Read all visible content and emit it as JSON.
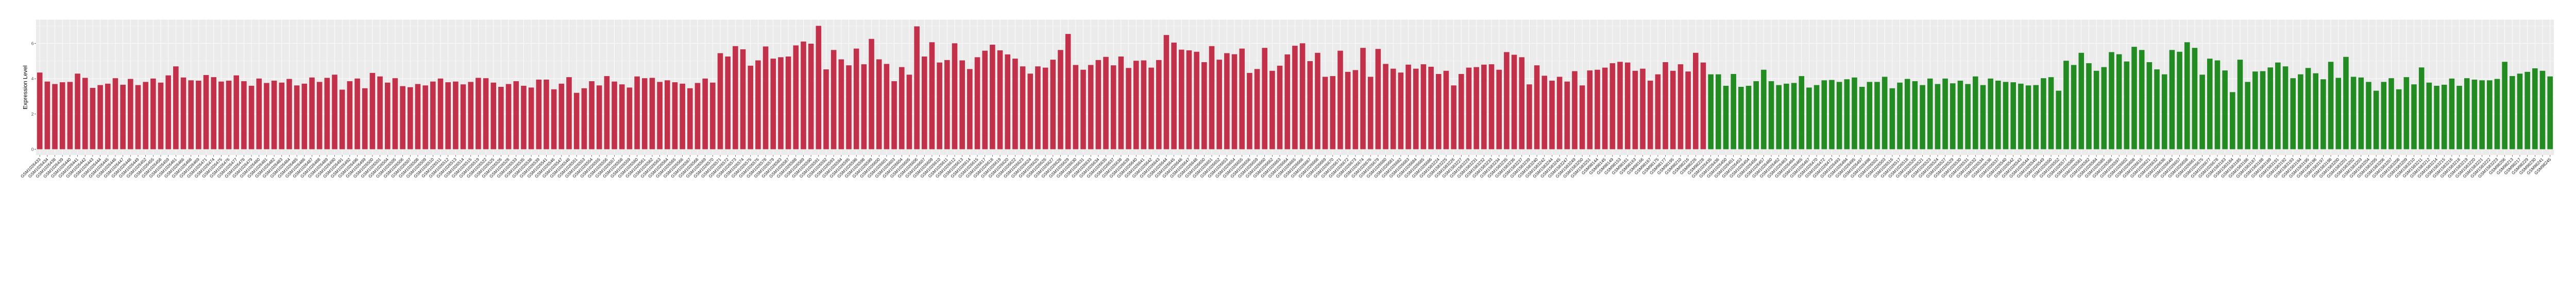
{
  "chart_data": {
    "type": "bar",
    "title": "",
    "xlabel": "",
    "ylabel": "Expression Level",
    "ylim": [
      -0.33,
      7.35
    ],
    "yticks": [
      0,
      2,
      4,
      6
    ],
    "grid": true,
    "legend": "none",
    "colors": {
      "group1": "#C3304A",
      "group2": "#228B22",
      "panel": "#EBEBEB",
      "grid": "#FFFFFF"
    },
    "series": [
      {
        "color": "#C3304A",
        "categories": [
          "GSM1026433",
          "GSM1026434",
          "GSM1026438",
          "GSM1026439",
          "GSM1026440",
          "GSM1026441",
          "GSM1026442",
          "GSM1026443",
          "GSM1026444",
          "GSM1026445",
          "GSM1026446",
          "GSM1026447",
          "GSM1026448",
          "GSM1026449",
          "GSM1026452",
          "GSM1026455",
          "GSM1026458",
          "GSM1026459",
          "GSM1026461",
          "GSM1026466",
          "GSM1026468",
          "GSM1026469",
          "GSM1026471",
          "GSM1026474",
          "GSM1026475",
          "GSM1026476",
          "GSM1026477",
          "GSM1026478",
          "GSM1026479",
          "GSM1026480",
          "GSM1026481",
          "GSM1026482",
          "GSM1026483",
          "GSM1026484",
          "GSM1026485",
          "GSM1026486",
          "GSM1026487",
          "GSM1026488",
          "GSM1026489",
          "GSM1026490",
          "GSM1026491",
          "GSM1026492",
          "GSM1026496",
          "GSM1026499",
          "GSM1026500",
          "GSM1026501",
          "GSM1026504",
          "GSM1026505",
          "GSM1026506",
          "GSM1026507",
          "GSM1026508",
          "GSM1026509",
          "GSM1026510",
          "GSM1026511",
          "GSM1026512",
          "GSM1026513",
          "GSM1026514",
          "GSM1026515",
          "GSM1026519",
          "GSM1026522",
          "GSM1026525",
          "GSM1026526",
          "GSM1026528",
          "GSM1026533",
          "GSM1026535",
          "GSM1026538",
          "GSM1026539",
          "GSM1026541",
          "GSM1026546",
          "GSM1026547",
          "GSM1026548",
          "GSM1026551",
          "GSM1026553",
          "GSM1026554",
          "GSM1026555",
          "GSM1026556",
          "GSM1026557",
          "GSM1026558",
          "GSM1026559",
          "GSM1026560",
          "GSM1026561",
          "GSM1026562",
          "GSM1026563",
          "GSM1026564",
          "GSM1026565",
          "GSM1026566",
          "GSM1026567",
          "GSM1026568",
          "GSM1026569",
          "GSM1026570",
          "GSM1026571",
          "GSM1026572",
          "GSM1026573",
          "GSM1026574",
          "GSM1026575",
          "GSM1026576",
          "GSM1026578",
          "GSM1026579",
          "GSM1026583",
          "GSM1026587",
          "GSM1026588",
          "GSM1026589",
          "GSM1026590",
          "GSM1026591",
          "GSM1026592",
          "GSM1026593",
          "GSM1026594",
          "GSM1026595",
          "GSM1026596",
          "GSM1026598",
          "GSM1026599",
          "GSM1026600",
          "GSM1026601",
          "GSM1026603",
          "GSM1026604",
          "GSM1026605",
          "GSM1026606",
          "GSM1026607",
          "GSM1026609",
          "GSM1026610",
          "GSM1026611",
          "GSM1026612",
          "GSM1026613",
          "GSM1026614",
          "GSM1026615",
          "GSM1026617",
          "GSM1026618",
          "GSM1026619",
          "GSM1026620",
          "GSM1026622",
          "GSM1026623",
          "GSM1026624",
          "GSM1026625",
          "GSM1026626",
          "GSM1026627",
          "GSM1026628",
          "GSM1026629",
          "GSM1026630",
          "GSM1026631",
          "GSM1026633",
          "GSM1026634",
          "GSM1026635",
          "GSM1026637",
          "GSM1026638",
          "GSM1026639",
          "GSM1026640",
          "GSM1026641",
          "GSM1026642",
          "GSM1026643",
          "GSM1026644",
          "GSM1026645",
          "GSM1026646",
          "GSM1026647",
          "GSM1026648",
          "GSM1026650",
          "GSM1026651",
          "GSM1026652",
          "GSM1026653",
          "GSM1026654",
          "GSM1026655",
          "GSM1026656",
          "GSM1026659",
          "GSM1026660",
          "GSM1026662",
          "GSM1026663",
          "GSM1026664",
          "GSM1026665",
          "GSM1026666",
          "GSM1026667",
          "GSM1026668",
          "GSM1026669",
          "GSM1026670",
          "GSM1026671",
          "GSM1026672",
          "GSM1026673",
          "GSM1026674",
          "GSM1026676",
          "GSM1026679",
          "GSM1026680",
          "GSM1026681",
          "GSM1026682",
          "GSM1026683",
          "GSM1026684",
          "GSM1026685",
          "GSM1026686",
          "GSM1583224",
          "GSM1583225",
          "GSM1583226",
          "GSM1583227",
          "GSM1583229",
          "GSM1583231",
          "GSM1583232",
          "GSM1583233",
          "GSM1583234",
          "GSM1583235",
          "GSM1583236",
          "GSM1583237",
          "GSM1583239",
          "GSM1583240",
          "GSM1583242",
          "GSM1583244",
          "GSM1583245",
          "GSM1583247",
          "GSM1583249",
          "GSM1583250",
          "GSM1583251",
          "GSM98144",
          "GSM98145",
          "GSM98149",
          "GSM98153",
          "GSM98161",
          "GSM98163",
          "GSM98166",
          "GSM98167",
          "GSM98175",
          "GSM98177",
          "GSM98195",
          "GSM98210",
          "GSM98216",
          "GSM98226",
          "GSM98228"
        ],
        "values": [
          4.35,
          3.84,
          3.7,
          3.8,
          3.82,
          4.29,
          4.05,
          3.48,
          3.64,
          3.72,
          4.03,
          3.66,
          3.99,
          3.64,
          3.82,
          4.01,
          3.78,
          4.19,
          4.7,
          4.07,
          3.91,
          3.89,
          4.21,
          4.09,
          3.84,
          3.89,
          4.19,
          3.86,
          3.6,
          4.01,
          3.76,
          3.89,
          3.78,
          3.99,
          3.62,
          3.72,
          4.07,
          3.82,
          4.05,
          4.23,
          3.38,
          3.86,
          4.01,
          3.46,
          4.33,
          4.13,
          3.78,
          4.03,
          3.58,
          3.52,
          3.7,
          3.62,
          3.84,
          4.01,
          3.8,
          3.84,
          3.68,
          3.82,
          4.05,
          4.03,
          3.78,
          3.54,
          3.7,
          3.86,
          3.6,
          3.5,
          3.95,
          3.95,
          3.4,
          3.72,
          4.09,
          3.2,
          3.46,
          3.86,
          3.62,
          4.15,
          3.84,
          3.68,
          3.5,
          4.13,
          4.03,
          4.05,
          3.82,
          3.91,
          3.8,
          3.72,
          3.46,
          3.76,
          4.01,
          3.78,
          5.45,
          5.26,
          5.85,
          5.67,
          4.74,
          5.04,
          5.83,
          5.14,
          5.22,
          5.26,
          5.89,
          6.11,
          5.99,
          7.0,
          4.53,
          5.63,
          5.1,
          4.76,
          5.71,
          4.82,
          6.26,
          5.1,
          4.84,
          3.86,
          4.66,
          4.23,
          6.97,
          5.26,
          6.07,
          4.92,
          5.06,
          6.01,
          5.04,
          4.55,
          5.22,
          5.59,
          5.93,
          5.61,
          5.38,
          5.14,
          4.7,
          4.29,
          4.7,
          4.63,
          5.08,
          5.63,
          6.54,
          4.78,
          4.51,
          4.78,
          5.06,
          5.24,
          4.76,
          5.26,
          4.61,
          5.02,
          5.04,
          4.63,
          5.06,
          6.48,
          6.05,
          5.65,
          5.61,
          5.53,
          4.94,
          5.85,
          5.08,
          5.45,
          5.39,
          5.71,
          4.33,
          4.55,
          5.75,
          4.45,
          4.74,
          5.38,
          5.87,
          6.01,
          5.0,
          5.47,
          4.11,
          4.15,
          5.59,
          4.39,
          4.49,
          5.75,
          4.11,
          5.69,
          4.84,
          4.57,
          4.35,
          4.8,
          4.57,
          4.82,
          4.68,
          4.27,
          4.45,
          3.62,
          4.27,
          4.63,
          4.66,
          4.8,
          4.82,
          4.51,
          5.51,
          5.36,
          5.22,
          3.68,
          4.76,
          4.17,
          3.89,
          4.11,
          3.84,
          4.43,
          3.62,
          4.47,
          4.51,
          4.63,
          4.88,
          4.96,
          4.92,
          4.45,
          4.57,
          3.89,
          4.25,
          4.94,
          4.45,
          4.82,
          4.41,
          5.47,
          4.92
        ]
      },
      {
        "color": "#228B22",
        "categories": [
          "GSM1026435",
          "GSM1026436",
          "GSM1026450",
          "GSM1026451",
          "GSM1026453",
          "GSM1026454",
          "GSM1026456",
          "GSM1026457",
          "GSM1026460",
          "GSM1026462",
          "GSM1026463",
          "GSM1026464",
          "GSM1026465",
          "GSM1026467",
          "GSM1026470",
          "GSM1026472",
          "GSM1026473",
          "GSM1026493",
          "GSM1026494",
          "GSM1026495",
          "GSM1026497",
          "GSM1026498",
          "GSM1026502",
          "GSM1026503",
          "GSM1026516",
          "GSM1026517",
          "GSM1026518",
          "GSM1026520",
          "GSM1026521",
          "GSM1026523",
          "GSM1026524",
          "GSM1026527",
          "GSM1026529",
          "GSM1026530",
          "GSM1026531",
          "GSM1026532",
          "GSM1026534",
          "GSM1026536",
          "GSM1026537",
          "GSM1026540",
          "GSM1026542",
          "GSM1026543",
          "GSM1026544",
          "GSM1026545",
          "GSM1026549",
          "GSM1026550",
          "GSM1026552",
          "GSM1026577",
          "GSM1026580",
          "GSM1026581",
          "GSM1026582",
          "GSM1026584",
          "GSM1026585",
          "GSM1026586",
          "GSM1026597",
          "GSM1026602",
          "GSM1026608",
          "GSM1026616",
          "GSM1026621",
          "GSM1026632",
          "GSM1026636",
          "GSM1026649",
          "GSM1026657",
          "GSM1026658",
          "GSM1026661",
          "GSM1026675",
          "GSM1026677",
          "GSM1026678",
          "GSM1583183",
          "GSM1583184",
          "GSM1583185",
          "GSM1583186",
          "GSM1583187",
          "GSM1583188",
          "GSM1583189",
          "GSM1583191",
          "GSM1583192",
          "GSM1583193",
          "GSM1583194",
          "GSM1583195",
          "GSM1583196",
          "GSM1583197",
          "GSM1583198",
          "GSM1583200",
          "GSM1583201",
          "GSM1583202",
          "GSM1583203",
          "GSM1583204",
          "GSM1583205",
          "GSM1583206",
          "GSM1583207",
          "GSM1583208",
          "GSM1583209",
          "GSM1583210",
          "GSM1583211",
          "GSM1583212",
          "GSM1583214",
          "GSM1583215",
          "GSM1583216",
          "GSM1583218",
          "GSM1583219",
          "GSM1583220",
          "GSM1583221",
          "GSM1583222",
          "GSM1583223",
          "GSM98206",
          "GSM98213",
          "GSM98217",
          "GSM98229",
          "GSM98230",
          "GSM98241",
          "GSM98245"
        ],
        "values": [
          4.25,
          4.25,
          3.6,
          4.27,
          3.54,
          3.6,
          3.86,
          4.51,
          3.86,
          3.64,
          3.72,
          3.76,
          4.15,
          3.5,
          3.64,
          3.91,
          3.93,
          3.82,
          3.97,
          4.07,
          3.54,
          3.82,
          3.82,
          4.11,
          3.46,
          3.78,
          3.99,
          3.86,
          3.64,
          4.01,
          3.7,
          4.01,
          3.74,
          3.89,
          3.7,
          4.13,
          3.64,
          4.01,
          3.89,
          3.82,
          3.8,
          3.72,
          3.62,
          3.64,
          4.03,
          4.09,
          3.32,
          5.02,
          4.78,
          5.47,
          4.88,
          4.45,
          4.66,
          5.51,
          5.39,
          4.98,
          5.81,
          5.63,
          4.94,
          4.53,
          4.25,
          5.63,
          5.53,
          6.07,
          5.75,
          4.23,
          5.14,
          5.04,
          4.47,
          3.24,
          5.08,
          3.82,
          4.41,
          4.43,
          4.64,
          4.92,
          4.7,
          4.03,
          4.25,
          4.61,
          4.31,
          3.97,
          4.96,
          4.05,
          5.24,
          4.11,
          4.07,
          3.82,
          3.32,
          3.82,
          4.03,
          3.4,
          4.09,
          3.68,
          4.64,
          3.78,
          3.6,
          3.66,
          4.01,
          3.6,
          4.03,
          3.95,
          3.91,
          3.91,
          3.99,
          4.96,
          4.15,
          4.29,
          4.39,
          4.59,
          4.45,
          4.13
        ]
      }
    ]
  }
}
